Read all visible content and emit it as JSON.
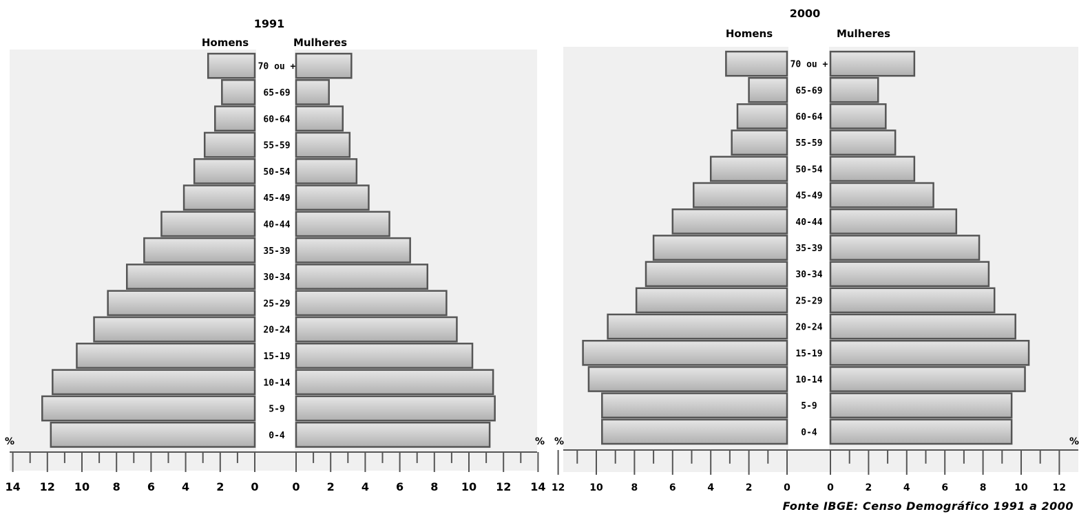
{
  "chart_data": [
    {
      "type": "bar",
      "orientation": "horizontal-pyramid",
      "title": "1991",
      "categories": [
        "0-4",
        "5-9",
        "10-14",
        "15-19",
        "20-24",
        "25-29",
        "30-34",
        "35-39",
        "40-44",
        "45-49",
        "50-54",
        "55-59",
        "60-64",
        "65-69",
        "70 ou +"
      ],
      "series": [
        {
          "name": "Homens",
          "values": [
            11.8,
            12.3,
            11.7,
            10.3,
            9.3,
            8.5,
            7.4,
            6.4,
            5.4,
            4.1,
            3.5,
            2.9,
            2.3,
            1.9,
            2.7
          ]
        },
        {
          "name": "Mulheres",
          "values": [
            11.2,
            11.5,
            11.4,
            10.2,
            9.3,
            8.7,
            7.6,
            6.6,
            5.4,
            4.2,
            3.5,
            3.1,
            2.7,
            1.9,
            3.2
          ]
        }
      ],
      "xlabel": "%",
      "xlim": [
        0,
        14
      ],
      "ticks_left": [
        "14",
        "12",
        "10",
        "8",
        "6",
        "4",
        "2",
        "0"
      ],
      "ticks_right": [
        "0",
        "2",
        "4",
        "6",
        "8",
        "10",
        "12",
        "14"
      ],
      "unit_left": "%",
      "unit_right": "%"
    },
    {
      "type": "bar",
      "orientation": "horizontal-pyramid",
      "title": "2000",
      "categories": [
        "0-4",
        "5-9",
        "10-14",
        "15-19",
        "20-24",
        "25-29",
        "30-34",
        "35-39",
        "40-44",
        "45-49",
        "50-54",
        "55-59",
        "60-64",
        "65-69",
        "70 ou +"
      ],
      "series": [
        {
          "name": "Homens",
          "values": [
            9.7,
            9.7,
            10.4,
            10.7,
            9.4,
            7.9,
            7.4,
            7.0,
            6.0,
            4.9,
            4.0,
            2.9,
            2.6,
            2.0,
            3.2
          ]
        },
        {
          "name": "Mulheres",
          "values": [
            9.5,
            9.5,
            10.2,
            10.4,
            9.7,
            8.6,
            8.3,
            7.8,
            6.6,
            5.4,
            4.4,
            3.4,
            2.9,
            2.5,
            4.4
          ]
        }
      ],
      "xlabel": "%",
      "xlim": [
        0,
        12
      ],
      "ticks_left": [
        "12",
        "10",
        "8",
        "6",
        "4",
        "2",
        "0"
      ],
      "ticks_right": [
        "0",
        "2",
        "4",
        "6",
        "8",
        "10",
        "12"
      ],
      "unit_left": "%",
      "unit_right": "%"
    }
  ],
  "source_text": "Fonte IBGE: Censo Demográfico 1991 a 2000",
  "colors": {
    "bar_fill": "#c8c8c8",
    "bar_stroke": "#555555",
    "panel_bg": "#f0f0f0"
  }
}
